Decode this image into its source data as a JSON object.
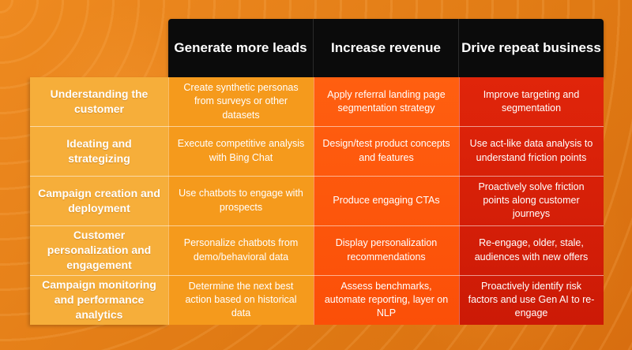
{
  "columns": [
    "Generate more leads",
    "Increase revenue",
    "Drive repeat business"
  ],
  "rows": [
    {
      "label": "Understanding the customer",
      "cells": [
        "Create synthetic personas from surveys or other datasets",
        "Apply referral landing page segmentation strategy",
        "Improve targeting and segmentation"
      ]
    },
    {
      "label": "Ideating and strategizing",
      "cells": [
        "Execute competitive analysis with Bing Chat",
        "Design/test product concepts and features",
        "Use act-like data analysis to understand friction points"
      ]
    },
    {
      "label": "Campaign creation and deployment",
      "cells": [
        "Use chatbots to engage with prospects",
        "Produce engaging CTAs",
        "Proactively solve friction points along customer journeys"
      ]
    },
    {
      "label": "Customer personalization and engagement",
      "cells": [
        "Personalize chatbots from demo/behavioral data",
        "Display personalization recommendations",
        "Re-engage, older, stale, audiences with new offers"
      ]
    },
    {
      "label": "Campaign monitoring and performance analytics",
      "cells": [
        "Determine the next best action based on historical data",
        "Assess benchmarks, automate reporting, layer on NLP",
        "Proactively identify risk factors and use Gen AI to re-engage"
      ]
    }
  ],
  "colors": {
    "header": "#0b0b0b",
    "row_label": "#f6ae3a",
    "col_leads": "#f59a1c",
    "col_revenue": "#fb4f08",
    "col_repeat": "#cc1a06"
  }
}
